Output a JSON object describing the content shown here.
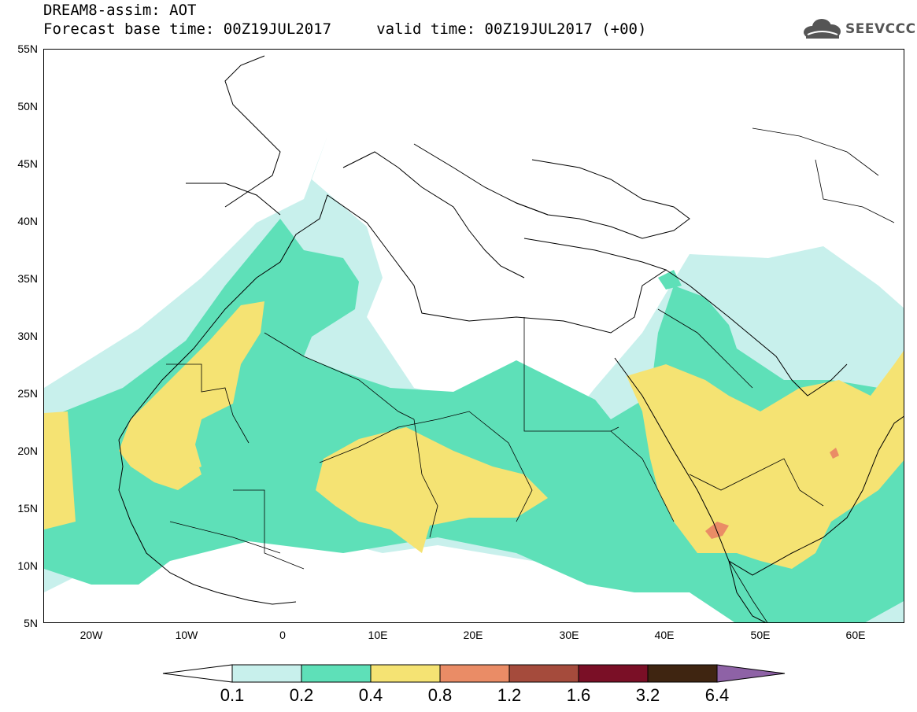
{
  "header": {
    "title": "DREAM8-assim: AOT",
    "subtitle": "Forecast base time: 00Z19JUL2017     valid time: 00Z19JUL2017 (+00)"
  },
  "logo": {
    "text": "SEEVCCC",
    "icon": "cloud-icon"
  },
  "map": {
    "lat_labels": [
      "55N",
      "50N",
      "45N",
      "40N",
      "35N",
      "30N",
      "25N",
      "20N",
      "15N",
      "10N",
      "5N"
    ],
    "lon_labels": [
      "20W",
      "10W",
      "0",
      "10E",
      "20E",
      "30E",
      "40E",
      "50E",
      "60E"
    ],
    "extent": {
      "lon_min": -25,
      "lon_max": 65,
      "lat_min": 5,
      "lat_max": 55
    }
  },
  "colorbar": {
    "labels": [
      "0.1",
      "0.2",
      "0.4",
      "0.8",
      "1.2",
      "1.6",
      "3.2",
      "6.4"
    ],
    "colors": [
      "#c8f0ec",
      "#5ee0b8",
      "#f5e373",
      "#ea8c66",
      "#a54b3c",
      "#7a0f26",
      "#3f2511",
      "#8e62a6"
    ],
    "under_color": "#ffffff"
  },
  "palette": {
    "aot_01_02": "#c8f0ec",
    "aot_02_04": "#5ee0b8",
    "aot_04_08": "#f5e373",
    "aot_08_12": "#ea8c66",
    "border": "#000000"
  }
}
